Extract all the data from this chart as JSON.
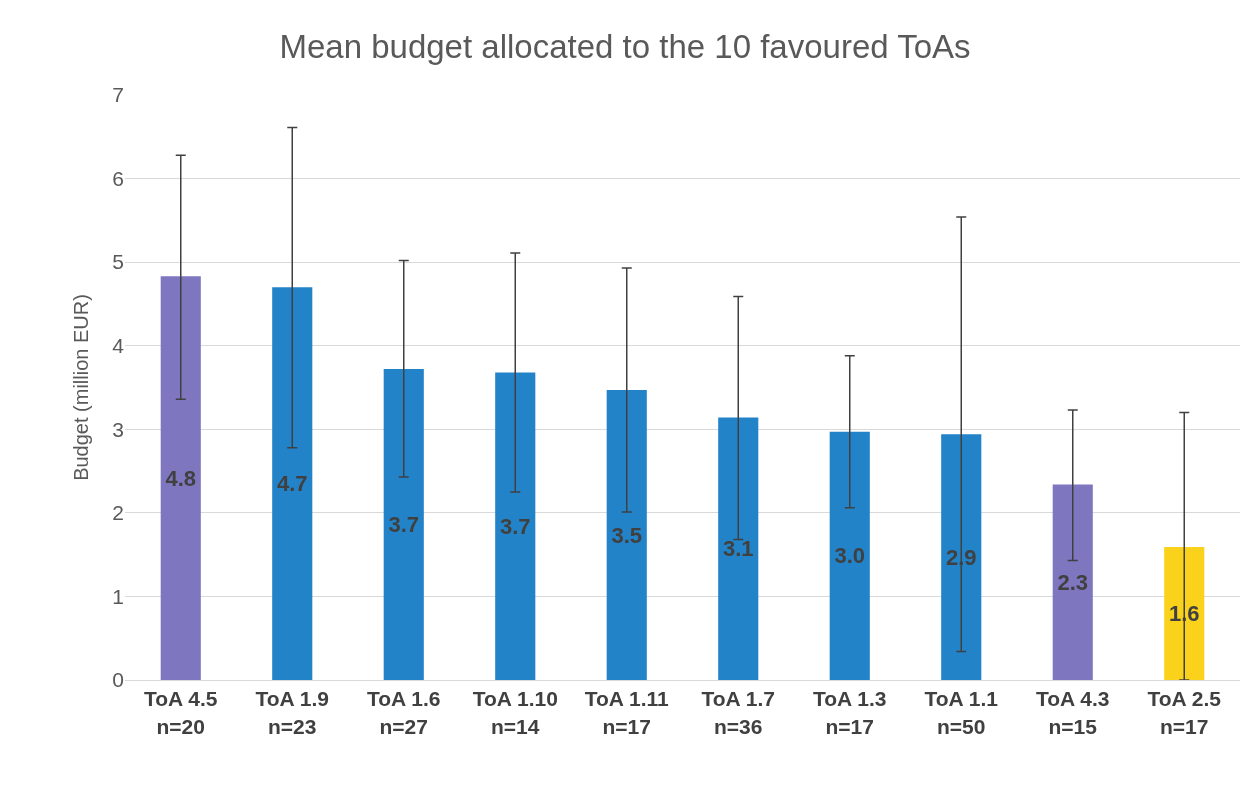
{
  "chart_data": {
    "type": "bar",
    "title": "Mean budget allocated to the 10 favoured ToAs",
    "ylabel": "Budget (million EUR)",
    "categories": [
      "ToA 4.5\nn=20",
      "ToA 1.9\nn=23",
      "ToA 1.6\nn=27",
      "ToA 1.10\nn=14",
      "ToA 1.11\nn=17",
      "ToA 1.7\nn=36",
      "ToA 1.3\nn=17",
      "ToA 1.1\nn=50",
      "ToA 4.3\nn=15",
      "ToA 2.5\nn=17"
    ],
    "values": [
      4.83,
      4.7,
      3.72,
      3.68,
      3.47,
      3.14,
      2.97,
      2.94,
      2.34,
      1.59
    ],
    "value_labels": [
      "4.8",
      "4.7",
      "3.7",
      "3.7",
      "3.5",
      "3.1",
      "3.0",
      "2.9",
      "2.3",
      "1.6"
    ],
    "colors": [
      "#7f76c0",
      "#2383c8",
      "#2383c8",
      "#2383c8",
      "#2383c8",
      "#2383c8",
      "#2383c8",
      "#2383c8",
      "#7f76c0",
      "#fbd21b"
    ],
    "errors": [
      [
        3.36,
        6.28
      ],
      [
        2.78,
        6.61
      ],
      [
        2.43,
        5.02
      ],
      [
        2.25,
        5.11
      ],
      [
        2.01,
        4.93
      ],
      [
        1.68,
        4.59
      ],
      [
        2.06,
        3.88
      ],
      [
        0.34,
        5.54
      ],
      [
        1.43,
        3.23
      ],
      [
        0,
        3.2
      ]
    ],
    "ylim": [
      0,
      7
    ],
    "yticks": [
      0,
      1,
      2,
      3,
      4,
      5,
      6,
      7
    ],
    "grid": "y"
  }
}
